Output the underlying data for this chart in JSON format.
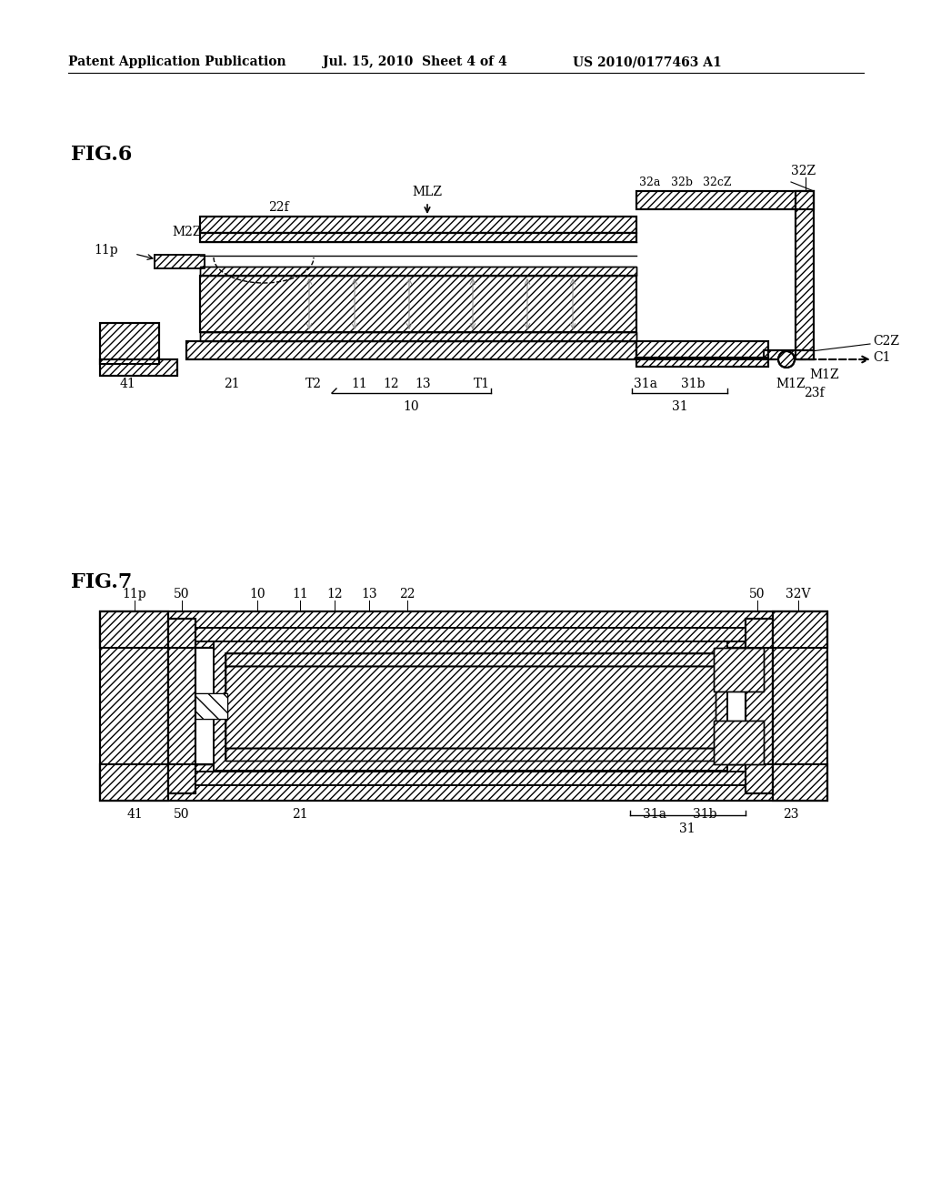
{
  "bg_color": "#ffffff",
  "header_text1": "Patent Application Publication",
  "header_text2": "Jul. 15, 2010  Sheet 4 of 4",
  "header_text3": "US 2010/0177463 A1",
  "fig6_label": "FIG.6",
  "fig7_label": "FIG.7",
  "line_color": "#000000",
  "fill_color": "#ffffff"
}
